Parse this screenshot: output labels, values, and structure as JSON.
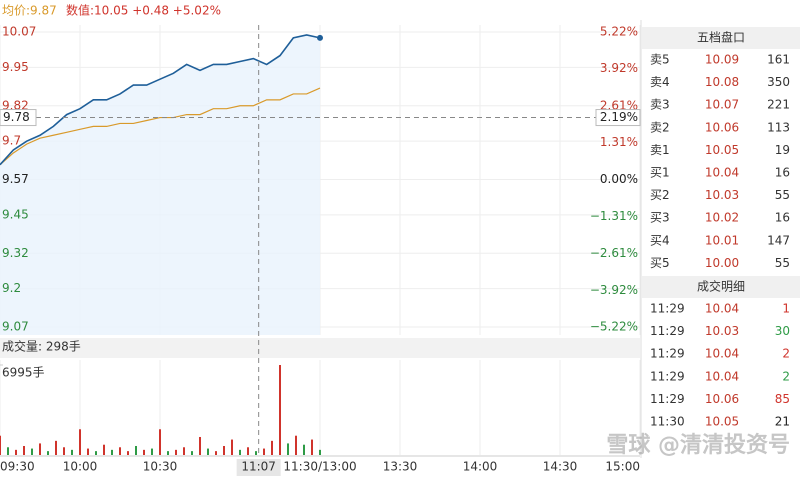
{
  "header": {
    "avg": "均价:9.87",
    "quote": "数值:10.05 +0.48 +5.02%"
  },
  "chart_data": [
    {
      "type": "line",
      "xlim": [
        0,
        240
      ],
      "xticks": [
        {
          "value": 0,
          "label": "09:30"
        },
        {
          "value": 30,
          "label": "10:00"
        },
        {
          "value": 60,
          "label": "10:30"
        },
        {
          "value": 120,
          "label": "11:30/13:00"
        },
        {
          "value": 150,
          "label": "13:30"
        },
        {
          "value": 180,
          "label": "14:00"
        },
        {
          "value": 210,
          "label": "14:30"
        },
        {
          "value": 240,
          "label": "15:00"
        }
      ],
      "ylim": [
        9.07,
        10.07
      ],
      "yticks": [
        10.07,
        9.95,
        9.82,
        9.7,
        9.57,
        9.45,
        9.32,
        9.2,
        9.07
      ],
      "yticks_labels_note_free": null,
      "y2lim": [
        -5.22,
        5.22
      ],
      "y2ticks": [
        {
          "value": 5.22,
          "label": "5.22%"
        },
        {
          "value": 3.92,
          "label": "3.92%"
        },
        {
          "value": 2.61,
          "label": "2.61%"
        },
        {
          "value": 1.31,
          "label": "1.31%"
        },
        {
          "value": 0,
          "label": "0.00%"
        },
        {
          "value": -1.31,
          "label": "−1.31%"
        },
        {
          "value": -2.61,
          "label": "−2.61%"
        },
        {
          "value": -3.92,
          "label": "−3.92%"
        },
        {
          "value": -5.22,
          "label": "−5.22%"
        }
      ],
      "grid": true,
      "x": [
        0,
        5,
        10,
        15,
        20,
        25,
        30,
        35,
        40,
        45,
        50,
        55,
        60,
        65,
        70,
        75,
        80,
        85,
        90,
        95,
        100,
        105,
        110,
        115,
        120
      ],
      "series": [
        {
          "color": "#1f5f99",
          "values": [
            9.62,
            9.67,
            9.7,
            9.72,
            9.75,
            9.79,
            9.81,
            9.84,
            9.84,
            9.86,
            9.89,
            9.89,
            9.91,
            9.93,
            9.96,
            9.94,
            9.96,
            9.96,
            9.97,
            9.98,
            9.96,
            9.99,
            10.05,
            10.06,
            10.05
          ]
        },
        {
          "color": "#d99a2b",
          "values": [
            9.62,
            9.66,
            9.69,
            9.71,
            9.72,
            9.73,
            9.74,
            9.75,
            9.75,
            9.76,
            9.76,
            9.77,
            9.78,
            9.78,
            9.79,
            9.79,
            9.81,
            9.81,
            9.82,
            9.82,
            9.84,
            9.84,
            9.86,
            9.86,
            9.88
          ]
        }
      ],
      "crosshair": {
        "x": 97,
        "x_label": "11:07",
        "y": 9.78,
        "y2": {
          "value": 2.19,
          "label": "2.19%"
        }
      }
    },
    {
      "type": "bar",
      "title": "成交量: 298手",
      "xlim": [
        0,
        240
      ],
      "ylim": [
        0,
        6995
      ],
      "yticks": [
        {
          "value": 6995,
          "label": "6995手"
        }
      ],
      "x": [
        0,
        3,
        6,
        9,
        12,
        15,
        18,
        21,
        24,
        27,
        30,
        33,
        36,
        39,
        42,
        45,
        48,
        51,
        54,
        57,
        60,
        63,
        66,
        69,
        72,
        75,
        78,
        81,
        84,
        87,
        90,
        93,
        96,
        99,
        102,
        105,
        108,
        111,
        114,
        117,
        120
      ],
      "values": [
        1500,
        600,
        400,
        700,
        500,
        900,
        300,
        1100,
        600,
        400,
        2000,
        500,
        300,
        800,
        400,
        600,
        300,
        700,
        400,
        500,
        2000,
        300,
        400,
        600,
        300,
        1400,
        500,
        300,
        700,
        1200,
        400,
        600,
        300,
        500,
        1100,
        6995,
        900,
        1500,
        800,
        1200,
        400
      ],
      "colors": [
        "#d0342c",
        "#2e9b46",
        "#d0342c",
        "#d0342c",
        "#2e9b46",
        "#d0342c",
        "#2e9b46",
        "#d0342c",
        "#d0342c",
        "#2e9b46",
        "#d0342c",
        "#d0342c",
        "#2e9b46",
        "#d0342c",
        "#2e9b46",
        "#d0342c",
        "#d0342c",
        "#2e9b46",
        "#d0342c",
        "#2e9b46",
        "#d0342c",
        "#2e9b46",
        "#d0342c",
        "#d0342c",
        "#2e9b46",
        "#d0342c",
        "#2e9b46",
        "#d0342c",
        "#d0342c",
        "#d0342c",
        "#2e9b46",
        "#d0342c",
        "#2e9b46",
        "#d0342c",
        "#d0342c",
        "#d0342c",
        "#2e9b46",
        "#d0342c",
        "#2e9b46",
        "#d0342c",
        "#2e9b46"
      ]
    }
  ],
  "order_book": {
    "title": "五档盘口",
    "rows": [
      [
        "卖5",
        "10.09",
        "161"
      ],
      [
        "卖4",
        "10.08",
        "350"
      ],
      [
        "卖3",
        "10.07",
        "221"
      ],
      [
        "卖2",
        "10.06",
        "113"
      ],
      [
        "卖1",
        "10.05",
        "19"
      ],
      [
        "买1",
        "10.04",
        "16"
      ],
      [
        "买2",
        "10.03",
        "55"
      ],
      [
        "买3",
        "10.02",
        "16"
      ],
      [
        "买4",
        "10.01",
        "147"
      ],
      [
        "买5",
        "10.00",
        "55"
      ]
    ]
  },
  "trades": {
    "title": "成交明细",
    "rows": [
      {
        "cells": [
          "11:29",
          "10.04",
          "1"
        ],
        "color": "#d0342c"
      },
      {
        "cells": [
          "11:29",
          "10.03",
          "30"
        ],
        "color": "#2e9b46"
      },
      {
        "cells": [
          "11:29",
          "10.04",
          "2"
        ],
        "color": "#d0342c"
      },
      {
        "cells": [
          "11:29",
          "10.04",
          "2"
        ],
        "color": "#2e9b46"
      },
      {
        "cells": [
          "11:29",
          "10.06",
          "85"
        ],
        "color": "#d0342c"
      },
      {
        "cells": [
          "11:30",
          "10.05",
          "21"
        ],
        "color": "#222222"
      }
    ]
  },
  "watermark": "雪球 @清清投资号"
}
